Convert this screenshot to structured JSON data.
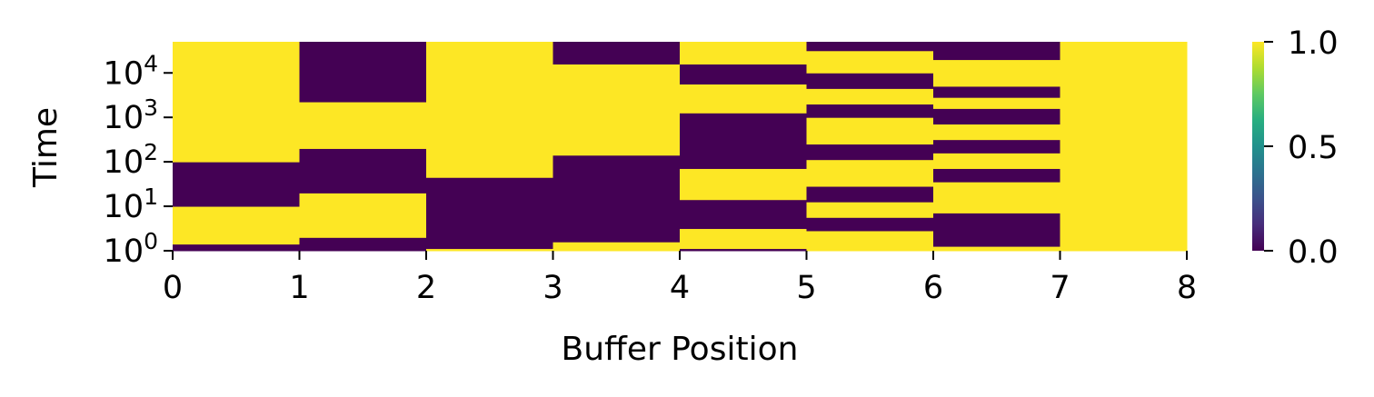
{
  "chart_data": {
    "type": "heatmap",
    "xlabel": "Buffer Position",
    "ylabel": "Time",
    "x_range": [
      0,
      8
    ],
    "x_ticks": [
      "0",
      "1",
      "2",
      "3",
      "4",
      "5",
      "6",
      "7",
      "8"
    ],
    "y_scale": "log",
    "y_ticks": [
      {
        "base": "10",
        "exp": "0",
        "value": 1
      },
      {
        "base": "10",
        "exp": "1",
        "value": 10
      },
      {
        "base": "10",
        "exp": "2",
        "value": 100
      },
      {
        "base": "10",
        "exp": "3",
        "value": 1000
      },
      {
        "base": "10",
        "exp": "4",
        "value": 10000
      }
    ],
    "y_range_log10": [
      0,
      4.7
    ],
    "colormap": "viridis",
    "colorbar": {
      "min": 0.0,
      "max": 1.0,
      "tick_labels": [
        "0.0",
        "0.5",
        "1.0"
      ],
      "tick_values": [
        0.0,
        0.5,
        1.0
      ]
    },
    "colors": {
      "low": "#440154",
      "high": "#fde725"
    },
    "columns": [
      {
        "position": 0,
        "segments": [
          [
            0.0,
            0.15,
            0
          ],
          [
            0.15,
            1.0,
            1
          ],
          [
            1.0,
            2.0,
            0
          ],
          [
            2.0,
            4.7,
            1
          ]
        ]
      },
      {
        "position": 1,
        "segments": [
          [
            0.0,
            0.3,
            0
          ],
          [
            0.3,
            1.3,
            1
          ],
          [
            1.3,
            2.3,
            0
          ],
          [
            2.3,
            3.35,
            1
          ],
          [
            3.35,
            4.7,
            0
          ]
        ]
      },
      {
        "position": 2,
        "segments": [
          [
            0.0,
            0.05,
            1
          ],
          [
            0.05,
            1.65,
            0
          ],
          [
            1.65,
            4.7,
            1
          ]
        ]
      },
      {
        "position": 3,
        "segments": [
          [
            0.0,
            0.2,
            1
          ],
          [
            0.2,
            2.15,
            0
          ],
          [
            2.15,
            4.2,
            1
          ],
          [
            4.2,
            4.7,
            0
          ]
        ]
      },
      {
        "position": 4,
        "segments": [
          [
            0.0,
            0.05,
            0
          ],
          [
            0.05,
            0.5,
            1
          ],
          [
            0.5,
            1.15,
            0
          ],
          [
            1.15,
            1.85,
            1
          ],
          [
            1.85,
            3.1,
            0
          ],
          [
            3.1,
            3.75,
            1
          ],
          [
            3.75,
            4.2,
            0
          ],
          [
            4.2,
            4.7,
            1
          ]
        ]
      },
      {
        "position": 5,
        "segments": [
          [
            0.0,
            0.45,
            1
          ],
          [
            0.45,
            0.75,
            0
          ],
          [
            0.75,
            1.1,
            1
          ],
          [
            1.1,
            1.45,
            0
          ],
          [
            1.45,
            2.05,
            1
          ],
          [
            2.05,
            2.4,
            0
          ],
          [
            2.4,
            3.0,
            1
          ],
          [
            3.0,
            3.3,
            0
          ],
          [
            3.3,
            3.65,
            1
          ],
          [
            3.65,
            4.0,
            0
          ],
          [
            4.0,
            4.5,
            1
          ],
          [
            4.5,
            4.7,
            0
          ]
        ]
      },
      {
        "position": 6,
        "segments": [
          [
            0.0,
            0.1,
            1
          ],
          [
            0.1,
            0.85,
            0
          ],
          [
            0.85,
            1.55,
            1
          ],
          [
            1.55,
            1.85,
            0
          ],
          [
            1.85,
            2.2,
            1
          ],
          [
            2.2,
            2.5,
            0
          ],
          [
            2.5,
            2.85,
            1
          ],
          [
            2.85,
            3.2,
            0
          ],
          [
            3.2,
            3.45,
            1
          ],
          [
            3.45,
            3.7,
            0
          ],
          [
            3.7,
            4.3,
            1
          ],
          [
            4.3,
            4.7,
            0
          ]
        ]
      },
      {
        "position": 7,
        "segments": [
          [
            0.0,
            4.7,
            1
          ]
        ]
      }
    ]
  }
}
